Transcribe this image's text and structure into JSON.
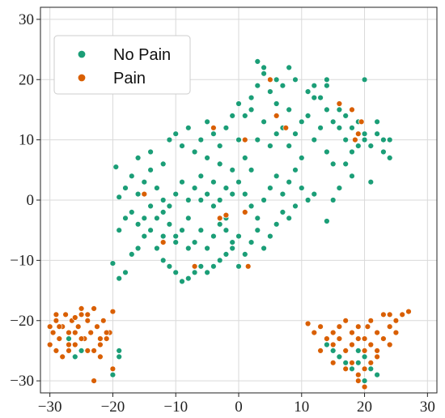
{
  "chart_data": {
    "type": "scatter",
    "xlim": [
      -31.5,
      31.5
    ],
    "ylim": [
      -32,
      32
    ],
    "xticks": [
      -30,
      -20,
      -10,
      0,
      10,
      20,
      30
    ],
    "yticks": [
      -30,
      -20,
      -10,
      0,
      10,
      20,
      30
    ],
    "grid": true,
    "legend_placement": "top-left",
    "series": [
      {
        "name": "No Pain",
        "color": "#1b9e77",
        "points": [
          [
            -20,
            -10.5
          ],
          [
            -19,
            -13
          ],
          [
            -18,
            -12
          ],
          [
            -17,
            -9
          ],
          [
            -16,
            -8
          ],
          [
            -15,
            -6
          ],
          [
            -14,
            -5
          ],
          [
            -13,
            -8
          ],
          [
            -12,
            -10
          ],
          [
            -11,
            -11
          ],
          [
            -10,
            -12
          ],
          [
            -9,
            -13.5
          ],
          [
            -8,
            -13
          ],
          [
            -7,
            -12
          ],
          [
            -6,
            -11
          ],
          [
            -5,
            -12
          ],
          [
            -4,
            -11
          ],
          [
            -3,
            -10
          ],
          [
            -2,
            -9
          ],
          [
            -1,
            -8
          ],
          [
            -19,
            -5
          ],
          [
            -18,
            -3
          ],
          [
            -17,
            -2
          ],
          [
            -16,
            -4
          ],
          [
            -15,
            -3
          ],
          [
            -14,
            -1
          ],
          [
            -13,
            -3
          ],
          [
            -12,
            -2
          ],
          [
            -11,
            -4
          ],
          [
            -10,
            -6
          ],
          [
            -9,
            -5
          ],
          [
            -8,
            -3
          ],
          [
            -7,
            -7
          ],
          [
            -6,
            -5
          ],
          [
            -5,
            -8
          ],
          [
            -4,
            -6
          ],
          [
            -3,
            -4
          ],
          [
            -2,
            -5
          ],
          [
            -1,
            -7
          ],
          [
            0,
            -6
          ],
          [
            -19.5,
            5.5
          ],
          [
            -19,
            0.5
          ],
          [
            -18,
            2
          ],
          [
            -17,
            4
          ],
          [
            -16,
            1
          ],
          [
            -15,
            3
          ],
          [
            -14,
            5
          ],
          [
            -13,
            2
          ],
          [
            -12,
            0
          ],
          [
            -11,
            -1
          ],
          [
            -10,
            1
          ],
          [
            -9,
            3
          ],
          [
            -8,
            0
          ],
          [
            -7,
            2
          ],
          [
            -6,
            4
          ],
          [
            -5,
            1
          ],
          [
            -4,
            3
          ],
          [
            -3,
            0
          ],
          [
            -2,
            2
          ],
          [
            -1,
            1
          ],
          [
            -16,
            7
          ],
          [
            -14,
            8
          ],
          [
            -12,
            6
          ],
          [
            -11,
            10
          ],
          [
            -10,
            11
          ],
          [
            -9,
            9
          ],
          [
            -8,
            12
          ],
          [
            -7,
            8
          ],
          [
            -6,
            10
          ],
          [
            -5,
            13
          ],
          [
            -4,
            11
          ],
          [
            -3,
            9
          ],
          [
            -2,
            12
          ],
          [
            -1,
            14
          ],
          [
            0,
            10
          ],
          [
            -5,
            7
          ],
          [
            -3,
            6
          ],
          [
            -1,
            5
          ],
          [
            1,
            7
          ],
          [
            2,
            5
          ],
          [
            0,
            3
          ],
          [
            1,
            1
          ],
          [
            2,
            -1
          ],
          [
            3,
            -3
          ],
          [
            4,
            0
          ],
          [
            5,
            2
          ],
          [
            6,
            4
          ],
          [
            7,
            1
          ],
          [
            8,
            3
          ],
          [
            9,
            5
          ],
          [
            0,
            16
          ],
          [
            1,
            14
          ],
          [
            2,
            17
          ],
          [
            3,
            19
          ],
          [
            4,
            21
          ],
          [
            5,
            18
          ],
          [
            6,
            20
          ],
          [
            7,
            19
          ],
          [
            8,
            22
          ],
          [
            9,
            20
          ],
          [
            3,
            23
          ],
          [
            4,
            22
          ],
          [
            2,
            15
          ],
          [
            4,
            13
          ],
          [
            6,
            11
          ],
          [
            8,
            9
          ],
          [
            10,
            7
          ],
          [
            3,
            10
          ],
          [
            5,
            9
          ],
          [
            7,
            12
          ],
          [
            9,
            11
          ],
          [
            10,
            13
          ],
          [
            8,
            15
          ],
          [
            6,
            16
          ],
          [
            12,
            17
          ],
          [
            11,
            14
          ],
          [
            13,
            12
          ],
          [
            12,
            10
          ],
          [
            14,
            8
          ],
          [
            15,
            6
          ],
          [
            11,
            18
          ],
          [
            12,
            19
          ],
          [
            13,
            17
          ],
          [
            14,
            15
          ],
          [
            15,
            13
          ],
          [
            16,
            12
          ],
          [
            17,
            10
          ],
          [
            18,
            8
          ],
          [
            19,
            9
          ],
          [
            20,
            11
          ],
          [
            14,
            20
          ],
          [
            14,
            19
          ],
          [
            16,
            15
          ],
          [
            17,
            14
          ],
          [
            18,
            12
          ],
          [
            19,
            13
          ],
          [
            20,
            10
          ],
          [
            21,
            9
          ],
          [
            22,
            11
          ],
          [
            23,
            10
          ],
          [
            20,
            20
          ],
          [
            22,
            13
          ],
          [
            23,
            8
          ],
          [
            24,
            7
          ],
          [
            24,
            10
          ],
          [
            21,
            3
          ],
          [
            17,
            6
          ],
          [
            18,
            4
          ],
          [
            16,
            2
          ],
          [
            15,
            0
          ],
          [
            14,
            -3.5
          ],
          [
            12,
            1
          ],
          [
            11,
            0
          ],
          [
            10,
            2
          ],
          [
            9,
            -1
          ],
          [
            8,
            -3
          ],
          [
            7,
            -2
          ],
          [
            6,
            -4
          ],
          [
            5,
            -6
          ],
          [
            4,
            -8
          ],
          [
            3,
            -5
          ],
          [
            2,
            -7
          ],
          [
            1,
            -9
          ],
          [
            0,
            -11
          ],
          [
            -2,
            -3
          ],
          [
            -4,
            -1
          ],
          [
            -6,
            0
          ],
          [
            -8,
            -8
          ],
          [
            -10,
            -7
          ],
          [
            -12,
            -6
          ],
          [
            14,
            -24
          ],
          [
            15,
            -25
          ],
          [
            16,
            -26
          ],
          [
            17,
            -27
          ],
          [
            18,
            -28
          ],
          [
            19,
            -27
          ],
          [
            20,
            -26
          ],
          [
            21,
            -28
          ],
          [
            22,
            -29
          ],
          [
            18,
            -24
          ],
          [
            -26,
            -26
          ],
          [
            -25,
            -25
          ],
          [
            -19,
            -25
          ],
          [
            -19,
            -26
          ],
          [
            -27,
            -23
          ],
          [
            -20,
            -29
          ],
          [
            20,
            -30
          ],
          [
            19,
            -25
          ]
        ]
      },
      {
        "name": "Pain",
        "color": "#d95f02",
        "points": [
          [
            -30,
            -21
          ],
          [
            -29.5,
            -22
          ],
          [
            -29,
            -20
          ],
          [
            -28.5,
            -23
          ],
          [
            -28,
            -21
          ],
          [
            -27.5,
            -19
          ],
          [
            -27,
            -22
          ],
          [
            -26.5,
            -20
          ],
          [
            -26,
            -24
          ],
          [
            -25.5,
            -21
          ],
          [
            -25,
            -19
          ],
          [
            -24.5,
            -23
          ],
          [
            -24,
            -20
          ],
          [
            -23.5,
            -22
          ],
          [
            -23,
            -25
          ],
          [
            -22.5,
            -21
          ],
          [
            -22,
            -24
          ],
          [
            -21.5,
            -20
          ],
          [
            -21,
            -23
          ],
          [
            -20.5,
            -22
          ],
          [
            -30,
            -24
          ],
          [
            -29,
            -25
          ],
          [
            -28,
            -26
          ],
          [
            -27,
            -24
          ],
          [
            -26,
            -22
          ],
          [
            -25,
            -18
          ],
          [
            -24,
            -19
          ],
          [
            -23,
            -18
          ],
          [
            -22,
            -26
          ],
          [
            -21,
            -22
          ],
          [
            -29,
            -19
          ],
          [
            -27,
            -25
          ],
          [
            -24,
            -25
          ],
          [
            -22,
            -23
          ],
          [
            -20,
            -18.5
          ],
          [
            -20,
            -28
          ],
          [
            -23,
            -30
          ],
          [
            -28.5,
            -21
          ],
          [
            -26,
            -19.5
          ],
          [
            -25,
            -23
          ],
          [
            11,
            -20.5
          ],
          [
            12,
            -22
          ],
          [
            13,
            -21
          ],
          [
            14,
            -23
          ],
          [
            15,
            -22
          ],
          [
            16,
            -21
          ],
          [
            17,
            -20
          ],
          [
            18,
            -22
          ],
          [
            19,
            -21
          ],
          [
            20,
            -23
          ],
          [
            21,
            -20
          ],
          [
            22,
            -22
          ],
          [
            23,
            -19
          ],
          [
            24,
            -21
          ],
          [
            25,
            -20
          ],
          [
            26,
            -19
          ],
          [
            27,
            -18.5
          ],
          [
            15,
            -24
          ],
          [
            16,
            -23
          ],
          [
            17,
            -25
          ],
          [
            18,
            -24
          ],
          [
            19,
            -23
          ],
          [
            20,
            -25
          ],
          [
            21,
            -24
          ],
          [
            22,
            -26
          ],
          [
            23,
            -23
          ],
          [
            24,
            -24
          ],
          [
            25,
            -22
          ],
          [
            17,
            -28
          ],
          [
            18,
            -27
          ],
          [
            19,
            -29
          ],
          [
            20,
            -28
          ],
          [
            21,
            -27
          ],
          [
            22,
            -25
          ],
          [
            19,
            -30
          ],
          [
            20,
            -31
          ],
          [
            15,
            -27
          ],
          [
            13,
            -25
          ],
          [
            24,
            -19
          ],
          [
            20.5,
            -21
          ],
          [
            -15,
            1
          ],
          [
            -12,
            -7
          ],
          [
            -7,
            -11
          ],
          [
            -3,
            -3
          ],
          [
            -2,
            -2.5
          ],
          [
            1,
            10
          ],
          [
            1.5,
            -11
          ],
          [
            6,
            14
          ],
          [
            7.5,
            12
          ],
          [
            5,
            20
          ],
          [
            18,
            15
          ],
          [
            19,
            11
          ],
          [
            19.5,
            13
          ],
          [
            16,
            16
          ],
          [
            18.5,
            10
          ],
          [
            -4,
            12
          ],
          [
            1,
            -2
          ]
        ]
      }
    ]
  }
}
